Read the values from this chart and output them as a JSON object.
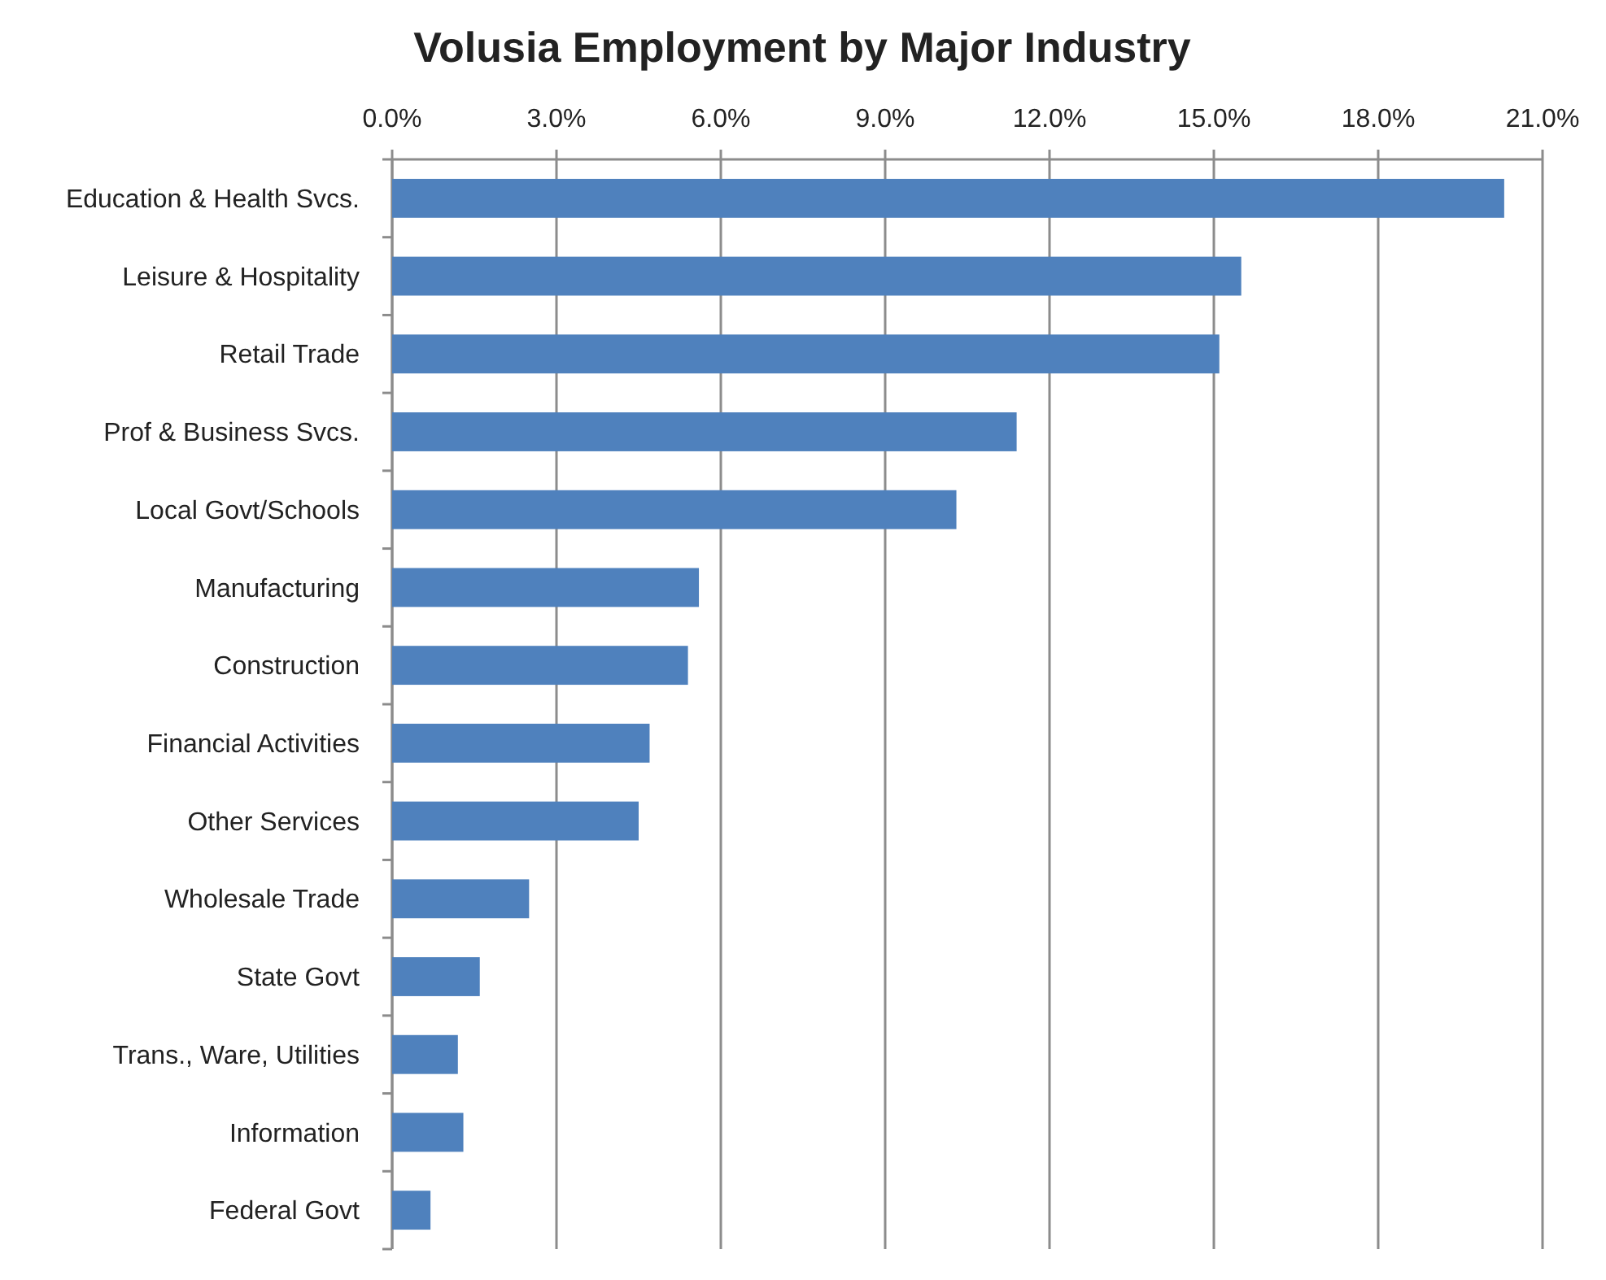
{
  "chart_data": {
    "type": "bar",
    "orientation": "horizontal",
    "title": "Volusia Employment by Major Industry",
    "categories": [
      "Education & Health Svcs.",
      "Leisure & Hospitality",
      "Retail Trade",
      "Prof & Business Svcs.",
      "Local Govt/Schools",
      "Manufacturing",
      "Construction",
      "Financial Activities",
      "Other Services",
      "Wholesale Trade",
      "State Govt",
      "Trans., Ware, Utilities",
      "Information",
      "Federal Govt"
    ],
    "values": [
      20.3,
      15.5,
      15.1,
      11.4,
      10.3,
      5.6,
      5.4,
      4.7,
      4.5,
      2.5,
      1.6,
      1.2,
      1.3,
      0.7
    ],
    "color": "#4f81bd",
    "xlim": [
      0,
      21
    ],
    "xticks": [
      {
        "value": 0,
        "label": "0.0%"
      },
      {
        "value": 3,
        "label": "3.0%"
      },
      {
        "value": 6,
        "label": "6.0%"
      },
      {
        "value": 9,
        "label": "9.0%"
      },
      {
        "value": 12,
        "label": "12.0%"
      },
      {
        "value": 15,
        "label": "15.0%"
      },
      {
        "value": 18,
        "label": "18.0%"
      },
      {
        "value": 21,
        "label": "21.0%"
      }
    ],
    "grid": "x"
  }
}
